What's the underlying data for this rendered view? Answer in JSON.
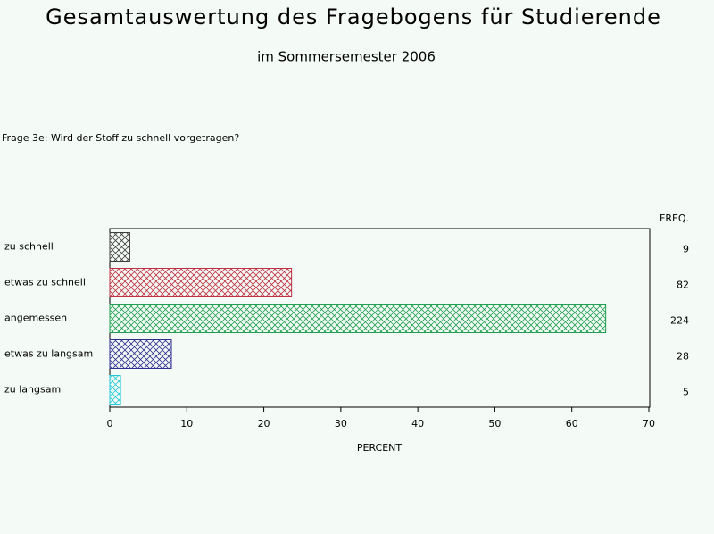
{
  "chart_data": {
    "type": "bar",
    "title": "Gesamtauswertung des Fragebogens für Studierende",
    "subtitle": "im Sommersemester 2006",
    "question": "Frage 3e: Wird der Stoff zu schnell vorgetragen?",
    "categories": [
      "zu schnell",
      "etwas zu schnell",
      "angemessen",
      "etwas zu langsam",
      "zu langsam"
    ],
    "values": [
      2.6,
      23.6,
      64.4,
      8.0,
      1.4
    ],
    "colors": [
      "#404040",
      "#c03040",
      "#20a050",
      "#303090",
      "#20c8d8"
    ],
    "freq_label": "FREQ.",
    "freq": [
      9,
      82,
      224,
      28,
      5
    ],
    "xlabel": "PERCENT",
    "xlim": [
      0,
      70
    ],
    "xticks": [
      0,
      10,
      20,
      30,
      40,
      50,
      60,
      70
    ]
  }
}
